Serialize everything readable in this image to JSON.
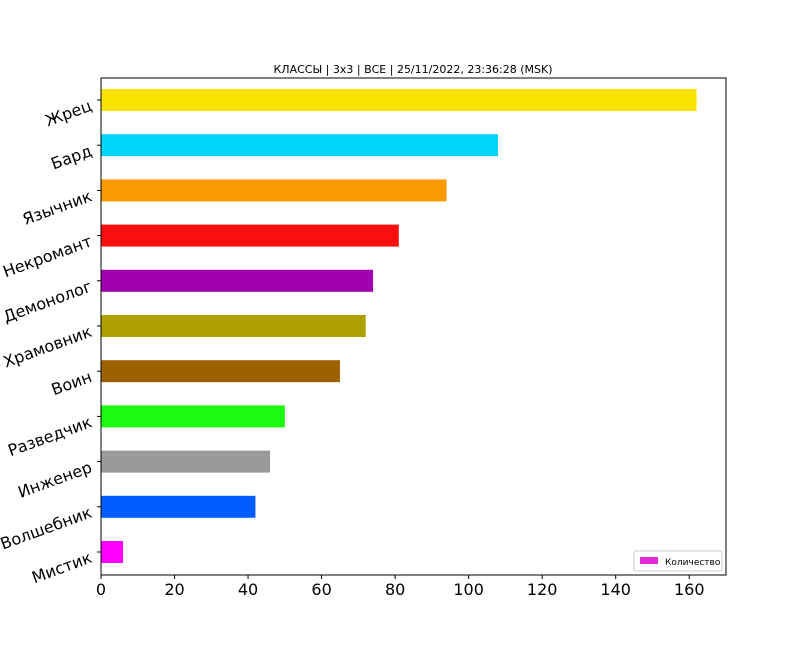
{
  "chart_data": {
    "type": "bar",
    "orientation": "horizontal",
    "title": "КЛАССЫ | 3x3 | ВСЕ | 25/11/2022, 23:36:28 (MSK)",
    "xlabel": "",
    "ylabel": "",
    "xlim": [
      0,
      170
    ],
    "xticks": [
      0,
      20,
      40,
      60,
      80,
      100,
      120,
      140,
      160
    ],
    "grid": false,
    "legend_position": "bottom-right",
    "categories": [
      "Жрец",
      "Бард",
      "Язычник",
      "Некромант",
      "Демонолог",
      "Храмовник",
      "Воин",
      "Разведчик",
      "Инженер",
      "Волшебник",
      "Мистик"
    ],
    "series": [
      {
        "name": "Количество",
        "values": [
          162,
          108,
          94,
          81,
          74,
          72,
          65,
          50,
          46,
          42,
          6
        ],
        "colors": [
          "#f9e400",
          "#00d4f9",
          "#f99a00",
          "#fe0f0f",
          "#a100b0",
          "#ada000",
          "#9c6200",
          "#1bfa0f",
          "#9a9a9a",
          "#005eff",
          "#ff00ff"
        ]
      }
    ],
    "legend_color": "#e42adb"
  }
}
